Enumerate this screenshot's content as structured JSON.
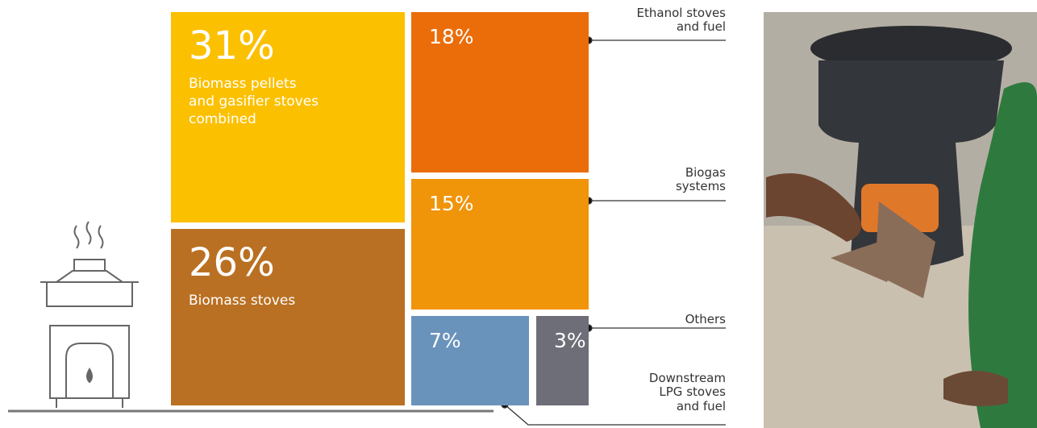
{
  "chart_data": {
    "type": "treemap",
    "categories": [
      "Biomass pellets\nand gasifier stoves\ncombined",
      "Biomass stoves",
      "Ethanol stoves\nand fuel",
      "Biogas\nsystems",
      "Downstream\nLPG stoves\nand fuel",
      "Others"
    ],
    "values": [
      31,
      26,
      18,
      15,
      7,
      3
    ],
    "value_labels": [
      "31%",
      "26%",
      "18%",
      "15%",
      "7%",
      "3%"
    ],
    "colors": [
      "#fbc000",
      "#ba7022",
      "#ea6d0a",
      "#f0940a",
      "#6a93bb",
      "#6e6e78"
    ]
  }
}
